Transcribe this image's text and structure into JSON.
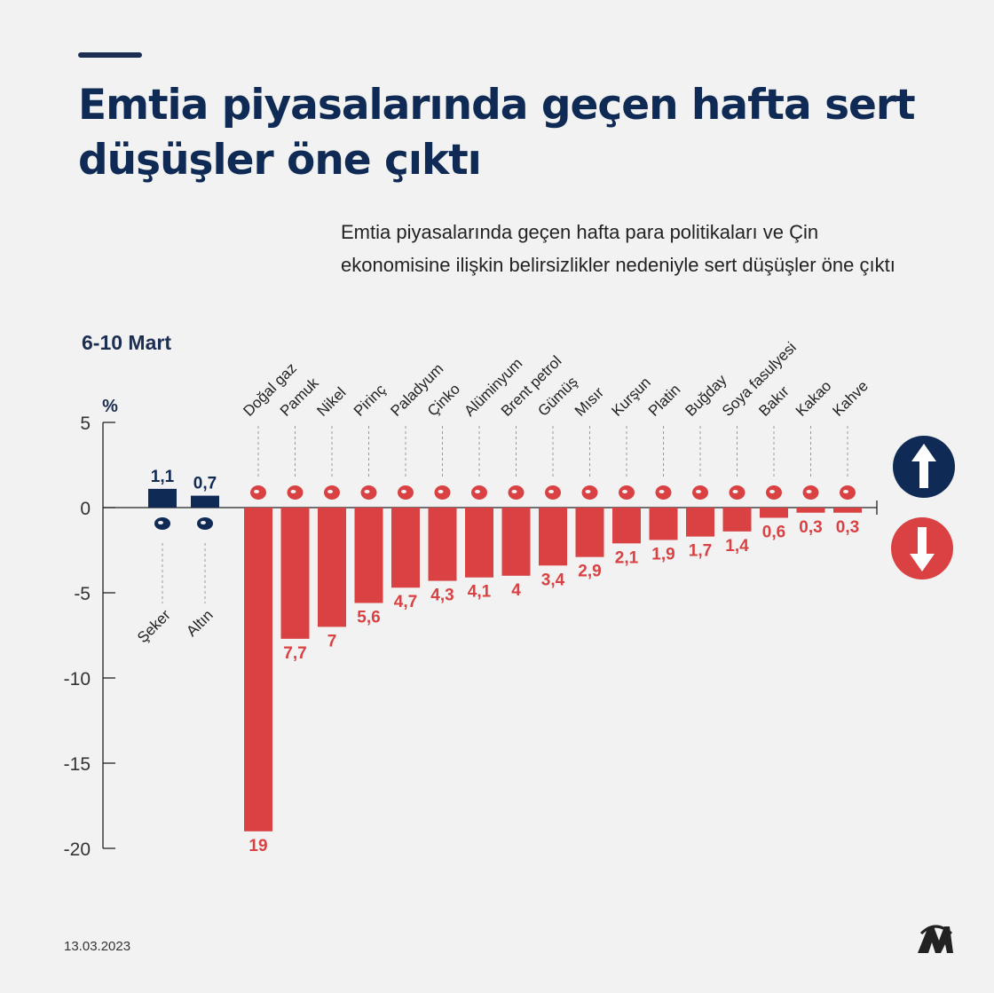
{
  "title": "Emtia piyasalarında geçen hafta sert düşüşler öne çıktı",
  "subtitle": "Emtia piyasalarında geçen hafta para politikaları ve Çin ekonomisine ilişkin belirsizlikler nedeniyle sert düşüşler öne çıktı",
  "period": "6-10 Mart",
  "date": "13.03.2023",
  "legend": {
    "up_icon": "arrow-up-icon",
    "down_icon": "arrow-down-icon"
  },
  "colors": {
    "up": "#0f2a55",
    "down": "#d94143",
    "text": "#222222"
  },
  "chart_data": {
    "type": "bar",
    "ylabel": "%",
    "ylim": [
      -20,
      5
    ],
    "yticks": [
      5,
      0,
      -5,
      -10,
      -15,
      -20
    ],
    "grid": false,
    "categories": [
      "Şeker",
      "Altın",
      "Doğal gaz",
      "Pamuk",
      "Nikel",
      "Pirinç",
      "Paladyum",
      "Çinko",
      "Alüminyum",
      "Brent petrol",
      "Gümüş",
      "Mısır",
      "Kurşun",
      "Platin",
      "Buğday",
      "Soya fasulyesi",
      "Bakır",
      "Kakao",
      "Kahve"
    ],
    "values": [
      1.1,
      0.7,
      -19,
      -7.7,
      -7,
      -5.6,
      -4.7,
      -4.3,
      -4.1,
      -4,
      -3.4,
      -2.9,
      -2.1,
      -1.9,
      -1.7,
      -1.4,
      -0.6,
      -0.3,
      -0.3
    ],
    "data_labels": [
      "1,1",
      "0,7",
      "19",
      "7,7",
      "7",
      "5,6",
      "4,7",
      "4,3",
      "4,1",
      "4",
      "3,4",
      "2,9",
      "2,1",
      "1,9",
      "1,7",
      "1,4",
      "0,6",
      "0,3",
      "0,3"
    ],
    "icons": [
      "sugar-sack-icon",
      "gold-bars-icon",
      "flame-icon",
      "cotton-icon",
      "metal-bars-icon",
      "rice-sack-icon",
      "metal-bars-icon",
      "metal-bars-icon",
      "ingot-stack-icon",
      "oil-barrel-icon",
      "metal-bars-icon",
      "corn-icon",
      "metal-bars-icon",
      "metal-bars-icon",
      "wheat-icon",
      "soybean-icon",
      "ingot-stack-icon",
      "cocoa-icon",
      "coffee-bean-icon"
    ]
  }
}
